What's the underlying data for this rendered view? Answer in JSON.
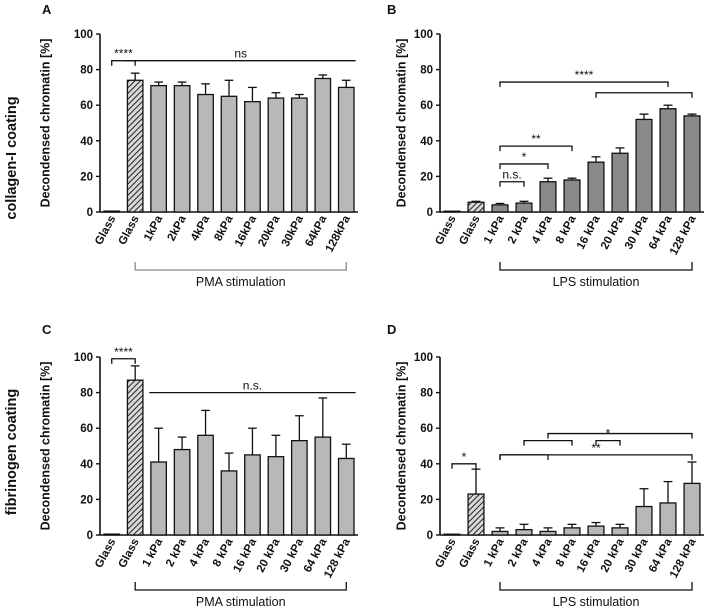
{
  "row_labels": [
    "collagen-I coating",
    "fibrinogen coating"
  ],
  "chart_data": [
    {
      "panel": "A",
      "type": "bar",
      "ylabel": "Decondensed chromatin [%]",
      "ylim": [
        0,
        100
      ],
      "yticks": [
        0,
        20,
        40,
        60,
        80,
        100
      ],
      "categories": [
        "Glass",
        "Glass",
        "1kPa",
        "2kPa",
        "4kPa",
        "8kPa",
        "16kPa",
        "20kPa",
        "30kPa",
        "64kPa",
        "128kPa"
      ],
      "values": [
        0.5,
        74,
        71,
        71,
        66,
        65,
        62,
        64,
        64,
        75,
        70
      ],
      "errors": [
        0,
        4,
        2,
        2,
        6,
        9,
        8,
        3,
        2,
        2,
        4
      ],
      "styles": [
        "plain",
        "hatched",
        "light",
        "light",
        "light",
        "light",
        "light",
        "light",
        "light",
        "light",
        "light"
      ],
      "group_label": "PMA stimulation",
      "group_from": 1,
      "group_to": 10,
      "significance": [
        {
          "label": "****",
          "from": 0,
          "to": 1,
          "y": 85,
          "type": "bracket"
        },
        {
          "label": "ns",
          "from": 1,
          "to": 10,
          "y": 85,
          "type": "line"
        }
      ]
    },
    {
      "panel": "B",
      "type": "bar",
      "ylabel": "Decondensed chromatin [%]",
      "ylim": [
        0,
        100
      ],
      "yticks": [
        0,
        20,
        40,
        60,
        80,
        100
      ],
      "categories": [
        "Glass",
        "Glass",
        "1 kPa",
        "2 kPa",
        "4 kPa",
        "8 kPa",
        "16 kPa",
        "20 kPa",
        "30 kPa",
        "64 kPa",
        "128 kPa"
      ],
      "values": [
        0.3,
        5.5,
        4,
        5,
        17,
        18,
        28,
        33,
        52,
        58,
        54
      ],
      "errors": [
        0,
        0.5,
        0.8,
        1,
        2,
        1,
        3,
        3,
        3,
        2,
        1
      ],
      "styles": [
        "plain",
        "hatched",
        "dark",
        "dark",
        "dark",
        "dark",
        "dark",
        "dark",
        "dark",
        "dark",
        "dark"
      ],
      "group_label": "LPS stimulation",
      "group_from": 2,
      "group_to": 10,
      "significance": [
        {
          "label": "n.s.",
          "from": 2,
          "to": 3,
          "y": 17,
          "type": "bracket"
        },
        {
          "label": "*",
          "from": 2,
          "to": 4,
          "y": 27,
          "type": "bracket"
        },
        {
          "label": "**",
          "from": 2,
          "to": 5,
          "y": 37,
          "type": "bracket"
        },
        {
          "label": "****",
          "from": 2,
          "to": 9,
          "y": 73,
          "type": "bracket"
        },
        {
          "label": "",
          "from": 6,
          "to": 10,
          "y": 67,
          "type": "bracket"
        }
      ]
    },
    {
      "panel": "C",
      "type": "bar",
      "ylabel": "Decondensed chromatin [%]",
      "ylim": [
        0,
        100
      ],
      "yticks": [
        0,
        20,
        40,
        60,
        80,
        100
      ],
      "categories": [
        "Glass",
        "Glass",
        "1 kPa",
        "2 kPa",
        "4 kPa",
        "8 kPa",
        "16 kPa",
        "20 kPa",
        "30 kPa",
        "64 kPa",
        "128 kPa"
      ],
      "values": [
        0.5,
        87,
        41,
        48,
        56,
        36,
        45,
        44,
        53,
        55,
        43
      ],
      "errors": [
        0,
        8,
        19,
        7,
        14,
        10,
        15,
        12,
        14,
        22,
        8
      ],
      "styles": [
        "plain",
        "hatched",
        "light",
        "light",
        "light",
        "light",
        "light",
        "light",
        "light",
        "light",
        "light"
      ],
      "group_label": "PMA stimulation",
      "group_from": 1,
      "group_to": 10,
      "significance": [
        {
          "label": "****",
          "from": 0,
          "to": 1,
          "y": 99,
          "type": "bracket"
        },
        {
          "label": "n.s.",
          "from": 2,
          "to": 10,
          "y": 80,
          "type": "line"
        }
      ]
    },
    {
      "panel": "D",
      "type": "bar",
      "ylabel": "Decondensed chromatin [%]",
      "ylim": [
        0,
        100
      ],
      "yticks": [
        0,
        20,
        40,
        60,
        80,
        100
      ],
      "categories": [
        "Glass",
        "Glass",
        "1 kPa",
        "2 kPa",
        "4 kPa",
        "8 kPa",
        "16 kPa",
        "20 kPa",
        "30 kPa",
        "64 kPa",
        "128 kPa"
      ],
      "values": [
        0.3,
        23,
        2,
        3,
        2,
        4,
        5,
        4,
        16,
        18,
        29
      ],
      "errors": [
        0,
        14,
        2,
        3,
        2,
        2,
        2,
        2,
        10,
        12,
        12
      ],
      "styles": [
        "plain",
        "hatched",
        "light",
        "light",
        "light",
        "light",
        "light",
        "light",
        "light",
        "light",
        "light"
      ],
      "group_label": "LPS stimulation",
      "group_from": 2,
      "group_to": 10,
      "significance": [
        {
          "label": "*",
          "from": 0,
          "to": 1,
          "y": 40,
          "type": "bracket"
        },
        {
          "label": "",
          "from": 2,
          "to": 4,
          "y": 45,
          "type": "bracket"
        },
        {
          "label": "",
          "from": 3,
          "to": 5,
          "y": 53,
          "type": "bracket"
        },
        {
          "label": "*",
          "from": 6,
          "to": 7,
          "y": 53,
          "type": "bracket"
        },
        {
          "label": "",
          "from": 4,
          "to": 10,
          "y": 57,
          "type": "bracket"
        },
        {
          "label": "**",
          "from": 2,
          "to": 10,
          "y": 45,
          "type": "bracket"
        }
      ]
    }
  ]
}
